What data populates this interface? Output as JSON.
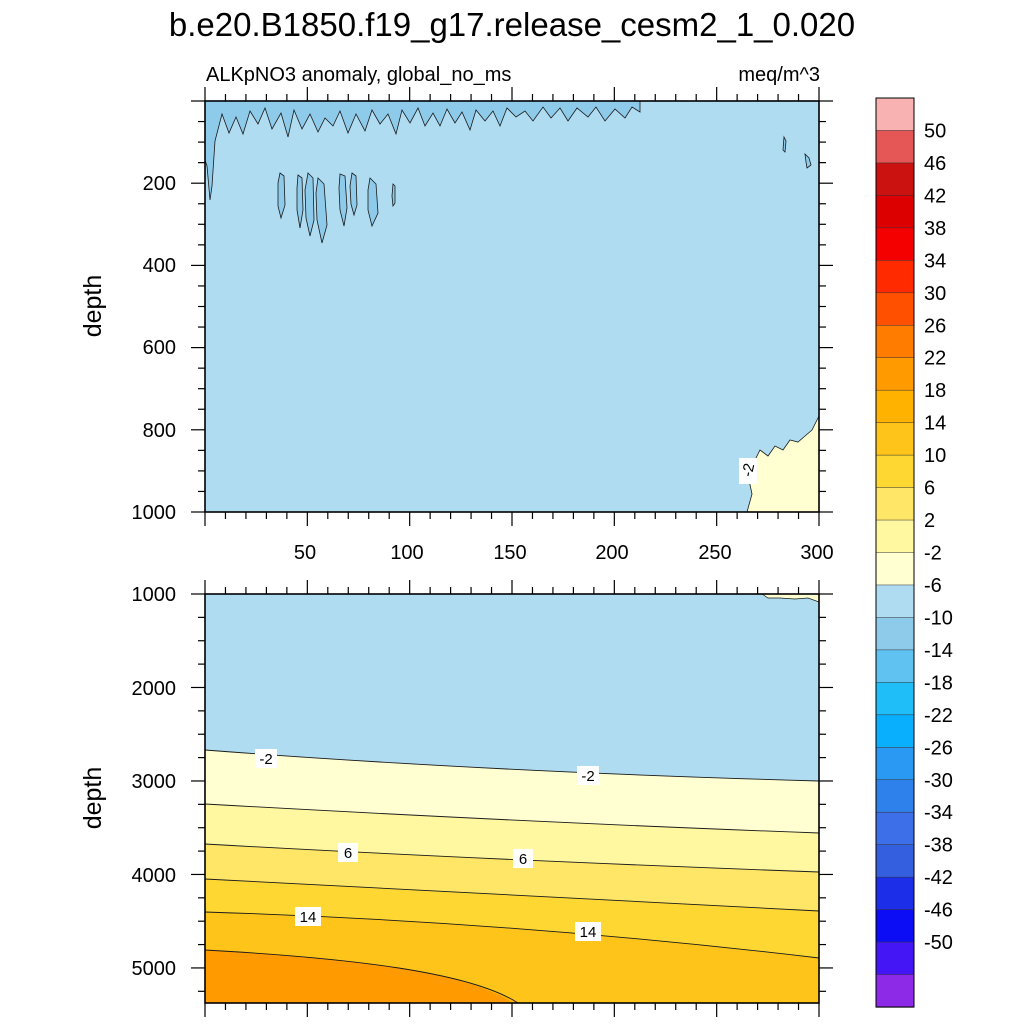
{
  "title": "b.e20.B1850.f19_g17.release_cesm2_1_0.020",
  "chart_data": [
    {
      "type": "contour",
      "panel": "upper",
      "left_label": "ALKpNO3 anomaly, global_no_ms",
      "right_label": "meq/m^3",
      "ylabel": "depth",
      "xlabel": "",
      "x_ticks": [
        "50",
        "100",
        "150",
        "200",
        "250",
        "300"
      ],
      "x_tick_values": [
        50,
        100,
        150,
        200,
        250,
        300
      ],
      "xlim": [
        0,
        300
      ],
      "y_ticks": [
        "200",
        "400",
        "600",
        "800",
        "1000"
      ],
      "y_tick_values": [
        200,
        400,
        600,
        800,
        1000
      ],
      "ylim": [
        0,
        1000
      ],
      "y_inverted": true,
      "dominant_range": "-6 to -2",
      "regions": [
        {
          "range": "-6 to -2",
          "extent": "entire panel (background)"
        },
        {
          "range": "-10 to -6",
          "extent": "thin streaks near surface 0-60 m, x 0-130, and pockets near 200-320 m, x 35-95"
        },
        {
          "range": "-2 to 2",
          "extent": "lower-right corner, x 265-300, depth 780-1000"
        }
      ],
      "contour_labels": [
        {
          "text": "-2",
          "x": 266,
          "depth": 920
        }
      ]
    },
    {
      "type": "contour",
      "panel": "lower",
      "ylabel": "depth",
      "y_ticks": [
        "1000",
        "2000",
        "3000",
        "4000",
        "5000"
      ],
      "y_tick_values": [
        1000,
        2000,
        3000,
        4000,
        5000
      ],
      "ylim": [
        1000,
        5375
      ],
      "y_inverted": true,
      "xlim": [
        0,
        300
      ],
      "contour_lines": [
        {
          "level": -2,
          "depth_at_x0": 2680,
          "depth_at_x300": 3000
        },
        {
          "level": 2,
          "depth_at_x0": 3260,
          "depth_at_x300": 3550
        },
        {
          "level": 6,
          "depth_at_x0": 3680,
          "depth_at_x300": 3980
        },
        {
          "level": 10,
          "depth_at_x0": 4050,
          "depth_at_x300": 4400
        },
        {
          "level": 14,
          "depth_at_x0": 4420,
          "depth_at_x300": 4900
        },
        {
          "level": 18,
          "depth_at_x0": 4850,
          "depth_at_x150": 5375
        }
      ],
      "contour_labels": [
        {
          "text": "-2",
          "x": 30,
          "depth": 2850
        },
        {
          "text": "-2",
          "x": 188,
          "depth": 2950
        },
        {
          "text": "6",
          "x": 70,
          "depth": 3790
        },
        {
          "text": "6",
          "x": 156,
          "depth": 3860
        },
        {
          "text": "14",
          "x": 50,
          "depth": 4450
        },
        {
          "text": "14",
          "x": 188,
          "depth": 4630
        }
      ]
    }
  ],
  "colorbar": {
    "labels": [
      "50",
      "46",
      "42",
      "38",
      "34",
      "30",
      "26",
      "22",
      "18",
      "14",
      "10",
      "6",
      "2",
      "-2",
      "-6",
      "-10",
      "-14",
      "-18",
      "-22",
      "-26",
      "-30",
      "-34",
      "-38",
      "-42",
      "-46",
      "-50"
    ],
    "colors": [
      "#f8b2b2",
      "#e55757",
      "#cc1111",
      "#dd0000",
      "#f50000",
      "#ff2a00",
      "#ff5000",
      "#ff7c00",
      "#ff9a00",
      "#ffb300",
      "#ffc41a",
      "#ffd733",
      "#ffe666",
      "#fff8a0",
      "#ffffd2",
      "#b0dcf2",
      "#8ecbeb",
      "#5fc2f0",
      "#20bef8",
      "#09aefc",
      "#2a99f4",
      "#2e80ea",
      "#3d6fe8",
      "#3460e0",
      "#1d2ee8",
      "#0d0df5",
      "#4516f5",
      "#8c2ae8"
    ]
  }
}
